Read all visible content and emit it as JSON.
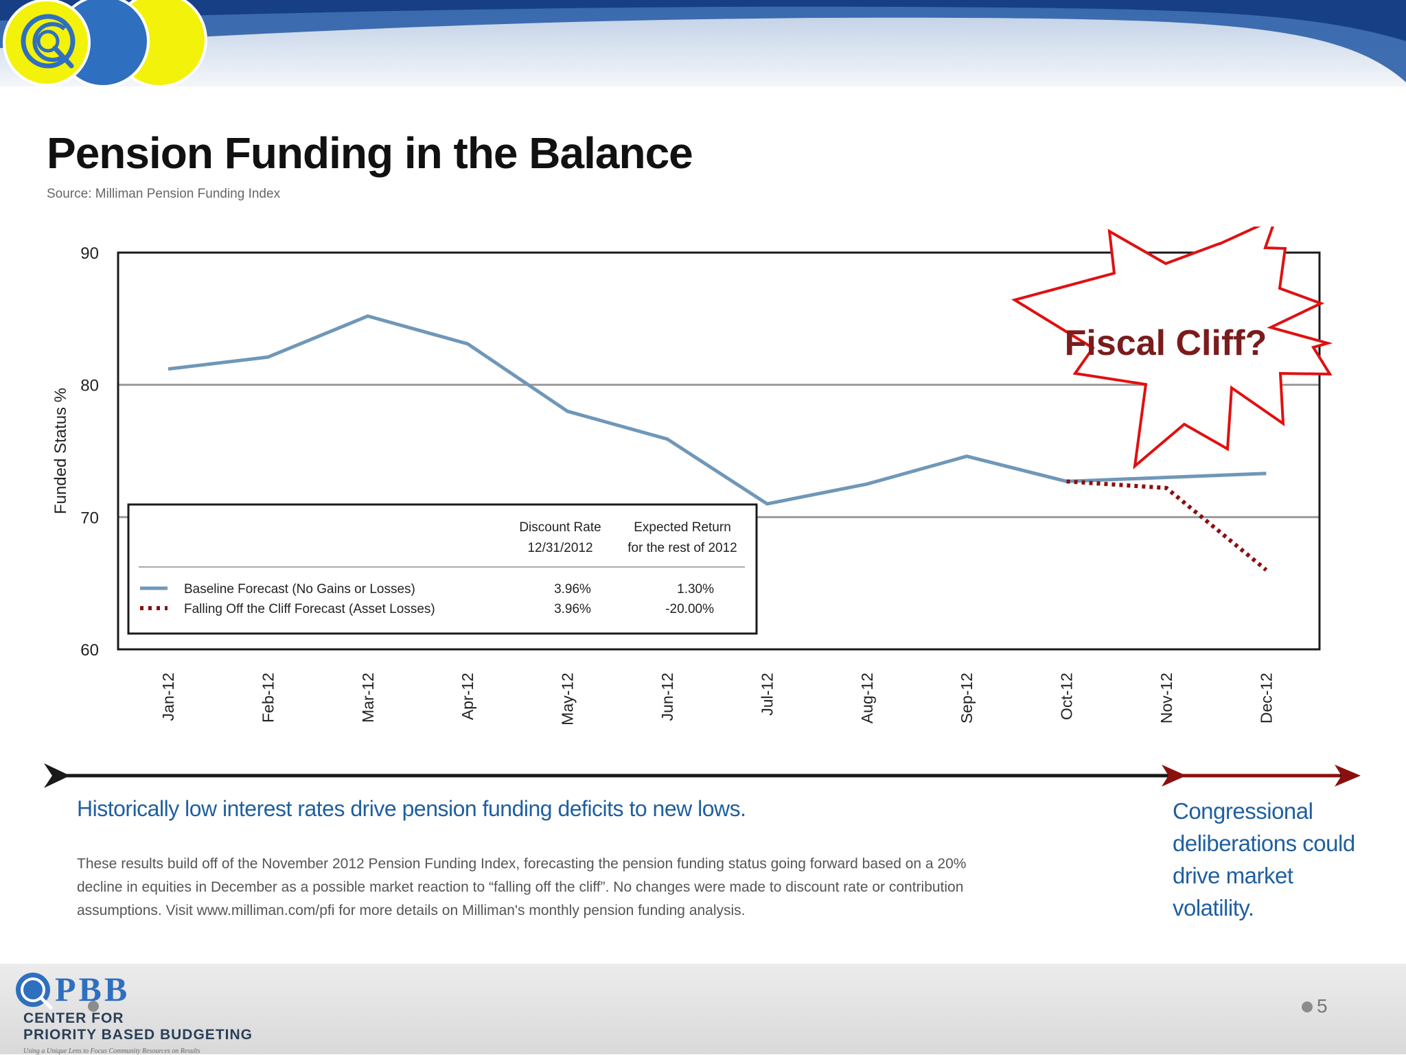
{
  "slide": {
    "title": "Pension Funding in the Balance",
    "source": "Source: Milliman Pension Funding Index",
    "headline": "Historically low interest rates drive pension funding deficits to new lows.",
    "body": "These results build off of the November 2012 Pension Funding Index, forecasting the pension funding status going forward based on a 20% decline in equities in December as a possible market reaction to “falling off the cliff”. No changes were made to discount rate or contribution assumptions. Visit www.milliman.com/pfi for more details on Milliman's monthly pension funding analysis.",
    "callout": "Congressional deliberations could drive market volatility.",
    "page_number": "5"
  },
  "footer": {
    "logo_letters": "PBB",
    "org_line1": "CENTER FOR",
    "org_line2": "PRIORITY BASED BUDGETING",
    "tagline": "Using a Unique Lens to Focus Community Resources on Results"
  },
  "colors": {
    "header_blue": "#1a4f9c",
    "header_yellow": "#f2f20a",
    "baseline_series": "#6f97b8",
    "cliff_series": "#8a1010",
    "starburst": "#e01010",
    "headline_text": "#1f5fa0"
  },
  "chart_data": {
    "type": "line",
    "ylabel": "Funded Status %",
    "ylim": [
      60,
      90
    ],
    "yticks": [
      60,
      70,
      80,
      90
    ],
    "grid_y": [
      70,
      80
    ],
    "categories": [
      "Jan-12",
      "Feb-12",
      "Mar-12",
      "Apr-12",
      "May-12",
      "Jun-12",
      "Jul-12",
      "Aug-12",
      "Sep-12",
      "Oct-12",
      "Nov-12",
      "Dec-12"
    ],
    "series": [
      {
        "name": "Baseline Forecast (No Gains or Losses)",
        "style": "solid",
        "values": [
          81.2,
          82.1,
          85.2,
          83.1,
          78.0,
          75.9,
          71.0,
          72.5,
          74.6,
          72.7,
          73.0,
          73.3
        ]
      },
      {
        "name": "Falling Off the Cliff Forecast (Asset Losses)",
        "style": "dotted",
        "values": [
          null,
          null,
          null,
          null,
          null,
          null,
          null,
          null,
          null,
          72.7,
          72.2,
          66.0
        ]
      }
    ],
    "legend": {
      "placement": "bottom-left",
      "col1_header": [
        "Discount Rate",
        "12/31/2012"
      ],
      "col2_header": [
        "Expected Return",
        "for the rest of 2012"
      ],
      "rows": [
        {
          "discount": "3.96%",
          "return": "1.30%"
        },
        {
          "discount": "3.96%",
          "return": "-20.00%"
        }
      ]
    },
    "annotation": "Fiscal Cliff?"
  }
}
